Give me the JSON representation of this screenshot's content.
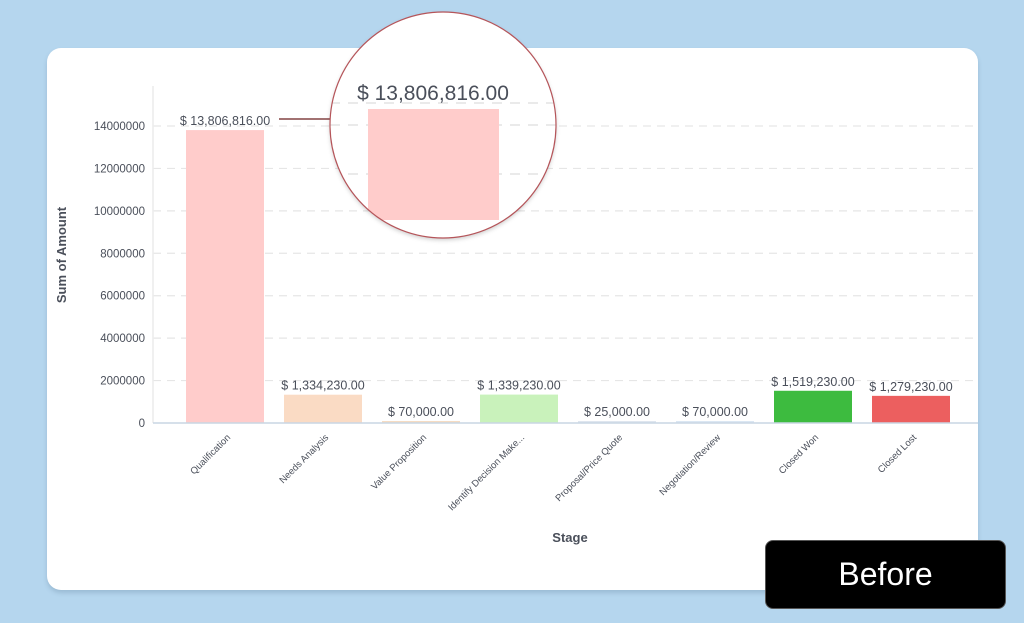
{
  "badge": {
    "label": "Before"
  },
  "magnifier": {
    "label": "$ 13,806,816.00"
  },
  "colors": {
    "background": "#b5d6ee",
    "card": "#ffffff",
    "grid": "#e6e6e6",
    "axis": "#c9d6e3",
    "text": "#4a4f5a",
    "magnifier_border": "#b5555a",
    "leader_line": "#6b1f1f"
  },
  "chart_data": {
    "type": "bar",
    "title": "",
    "xlabel": "Stage",
    "ylabel": "Sum of Amount",
    "ylim": [
      0,
      15000000
    ],
    "yticks": [
      0,
      2000000,
      4000000,
      6000000,
      8000000,
      10000000,
      12000000,
      14000000
    ],
    "ytick_labels": [
      "0",
      "2000000",
      "4000000",
      "6000000",
      "8000000",
      "10000000",
      "12000000",
      "14000000"
    ],
    "grid": true,
    "legend": "none",
    "categories": [
      "Qualification",
      "Needs Analysis",
      "Value Proposition",
      "Identify Decision Make...",
      "Proposal/Price Quote",
      "Negotiation/Review",
      "Closed Won",
      "Closed Lost"
    ],
    "values": [
      13806816,
      1334230,
      70000,
      1339230,
      25000,
      70000,
      1519230,
      1279230
    ],
    "data_labels": [
      "$ 13,806,816.00",
      "$ 1,334,230.00",
      "$ 70,000.00",
      "$ 1,339,230.00",
      "$ 25,000.00",
      "$ 70,000.00",
      "$ 1,519,230.00",
      "$ 1,279,230.00"
    ],
    "bar_colors": [
      "#ffcccb",
      "#fadbc4",
      "#f6dcc3",
      "#c9f2bb",
      "#dfe6ef",
      "#dbe7f3",
      "#3dbb3f",
      "#ec5f5f"
    ]
  }
}
